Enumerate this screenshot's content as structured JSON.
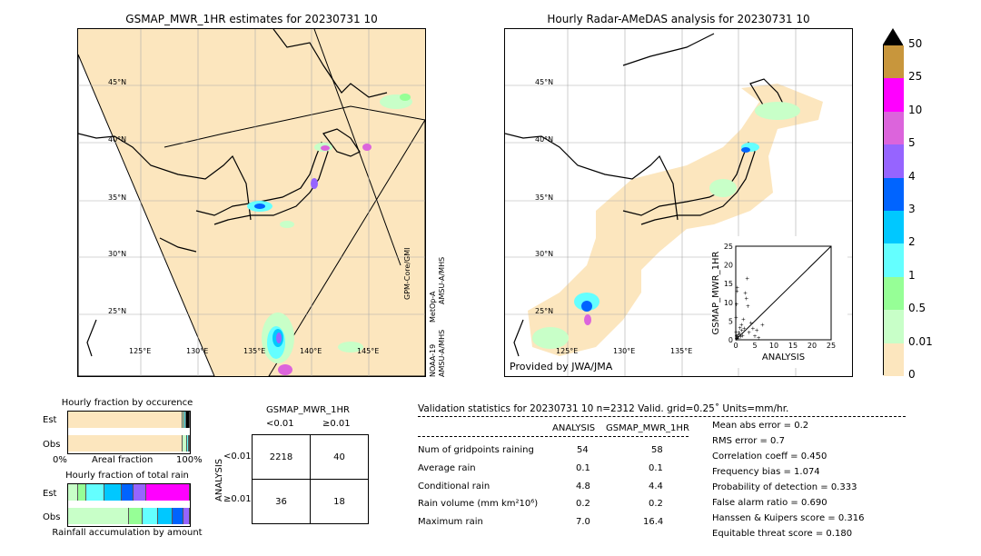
{
  "left_map": {
    "title": "GSMAP_MWR_1HR estimates for 20230731 10",
    "lat_labels": [
      "45°N",
      "40°N",
      "35°N",
      "30°N",
      "25°N"
    ],
    "lon_labels": [
      "125°E",
      "130°E",
      "135°E",
      "140°E",
      "145°E"
    ],
    "satellite_labels": [
      "GPM-Core/GMI",
      "NOAA-19",
      "AMSU-A/MHS",
      "MetOp-A",
      "AMSU-A/MHS"
    ]
  },
  "right_map": {
    "title": "Hourly Radar-AMeDAS analysis for 20230731 10",
    "lat_labels": [
      "45°N",
      "40°N",
      "35°N",
      "30°N",
      "25°N"
    ],
    "lon_labels": [
      "125°E",
      "130°E",
      "135°E"
    ],
    "credit": "Provided by JWA/JMA"
  },
  "colorbar": {
    "ticks": [
      "50",
      "25",
      "10",
      "5",
      "4",
      "3",
      "2",
      "1",
      "0.5",
      "0.01",
      "0"
    ],
    "colors": [
      "#c8963c",
      "#ff00ff",
      "#dc64dc",
      "#9664ff",
      "#0064ff",
      "#00c8ff",
      "#64ffff",
      "#96ff96",
      "#c8ffc8",
      "#fce6be"
    ]
  },
  "scatter_inset": {
    "xlabel": "ANALYSIS",
    "ylabel": "GSMAP_MWR_1HR",
    "ticks": [
      "0",
      "5",
      "10",
      "15",
      "20",
      "25"
    ]
  },
  "occurrence_panel": {
    "title": "Hourly fraction by occurence",
    "row_labels": [
      "Est",
      "Obs"
    ],
    "axis_left": "0%",
    "axis_mid": "Areal fraction",
    "axis_right": "100%"
  },
  "total_rain_panel": {
    "title": "Hourly fraction of total rain",
    "row_labels": [
      "Est",
      "Obs"
    ],
    "footer": "Rainfall accumulation by amount"
  },
  "contingency": {
    "title": "GSMAP_MWR_1HR",
    "col_labels": [
      "<0.01",
      "≥0.01"
    ],
    "row_axis": "ANALYSIS",
    "row_labels": [
      "<0.01",
      "≥0.01"
    ],
    "cells": [
      [
        "2218",
        "40"
      ],
      [
        "36",
        "18"
      ]
    ]
  },
  "validation": {
    "header": "Validation statistics for 20230731 10  n=2312 Valid. grid=0.25˚ Units=mm/hr.",
    "col_analysis": "ANALYSIS",
    "col_gsmap": "GSMAP_MWR_1HR",
    "rows": [
      {
        "label": "Num of gridpoints raining",
        "analysis": "54",
        "gsmap": "58"
      },
      {
        "label": "Average rain",
        "analysis": "0.1",
        "gsmap": "0.1"
      },
      {
        "label": "Conditional rain",
        "analysis": "4.8",
        "gsmap": "4.4"
      },
      {
        "label": "Rain volume (mm km²10⁶)",
        "analysis": "0.2",
        "gsmap": "0.2"
      },
      {
        "label": "Maximum rain",
        "analysis": "7.0",
        "gsmap": "16.4"
      }
    ],
    "scores": [
      "Mean abs error =    0.2",
      "RMS error =    0.7",
      "Correlation coeff =  0.450",
      "Frequency bias =  1.074",
      "Probability of detection =  0.333",
      "False alarm ratio =  0.690",
      "Hanssen & Kuipers score =  0.316",
      "Equitable threat score =  0.180"
    ]
  },
  "chart_data": [
    {
      "type": "scatter",
      "title": "",
      "xlabel": "ANALYSIS",
      "ylabel": "GSMAP_MWR_1HR",
      "xlim": [
        0,
        25
      ],
      "ylim": [
        0,
        25
      ],
      "points": [
        [
          0.2,
          0.3
        ],
        [
          0.3,
          0.8
        ],
        [
          0.5,
          1.2
        ],
        [
          0.6,
          0.4
        ],
        [
          0.8,
          2.0
        ],
        [
          1.0,
          1.5
        ],
        [
          1.1,
          3.2
        ],
        [
          1.3,
          0.9
        ],
        [
          1.5,
          4.0
        ],
        [
          1.6,
          2.5
        ],
        [
          1.8,
          1.1
        ],
        [
          2.0,
          5.5
        ],
        [
          2.2,
          3.0
        ],
        [
          2.5,
          12.5
        ],
        [
          2.8,
          11.0
        ],
        [
          3.0,
          16.4
        ],
        [
          3.2,
          9.0
        ],
        [
          3.5,
          2.0
        ],
        [
          4.0,
          4.5
        ],
        [
          4.5,
          3.0
        ],
        [
          5.0,
          1.0
        ],
        [
          5.5,
          2.5
        ],
        [
          6.0,
          0.5
        ],
        [
          7.0,
          4.0
        ],
        [
          0.1,
          6.0
        ],
        [
          0.2,
          9.5
        ],
        [
          0.3,
          13.0
        ],
        [
          0.4,
          14.0
        ],
        [
          0.1,
          2.0
        ],
        [
          0.2,
          1.0
        ]
      ]
    },
    {
      "type": "bar",
      "title": "Hourly fraction by occurence",
      "categories": [
        "Est",
        "Obs"
      ],
      "series": [
        {
          "values": [
            0.937,
            0.942
          ]
        },
        {
          "values": [
            0.02,
            0.035
          ]
        },
        {
          "values": [
            0.012,
            0.013
          ]
        },
        {
          "values": [
            0.031,
            0.01
          ]
        }
      ]
    },
    {
      "type": "bar",
      "title": "Hourly fraction of total rain",
      "categories": [
        "Est",
        "Obs"
      ],
      "series": [
        {
          "values": [
            0.08,
            0.5
          ]
        },
        {
          "values": [
            0.07,
            0.11
          ]
        },
        {
          "values": [
            0.15,
            0.13
          ]
        },
        {
          "values": [
            0.14,
            0.12
          ]
        },
        {
          "values": [
            0.1,
            0.09
          ]
        },
        {
          "values": [
            0.1,
            0.05
          ]
        },
        {
          "values": [
            0.36,
            0.0
          ]
        }
      ]
    }
  ]
}
